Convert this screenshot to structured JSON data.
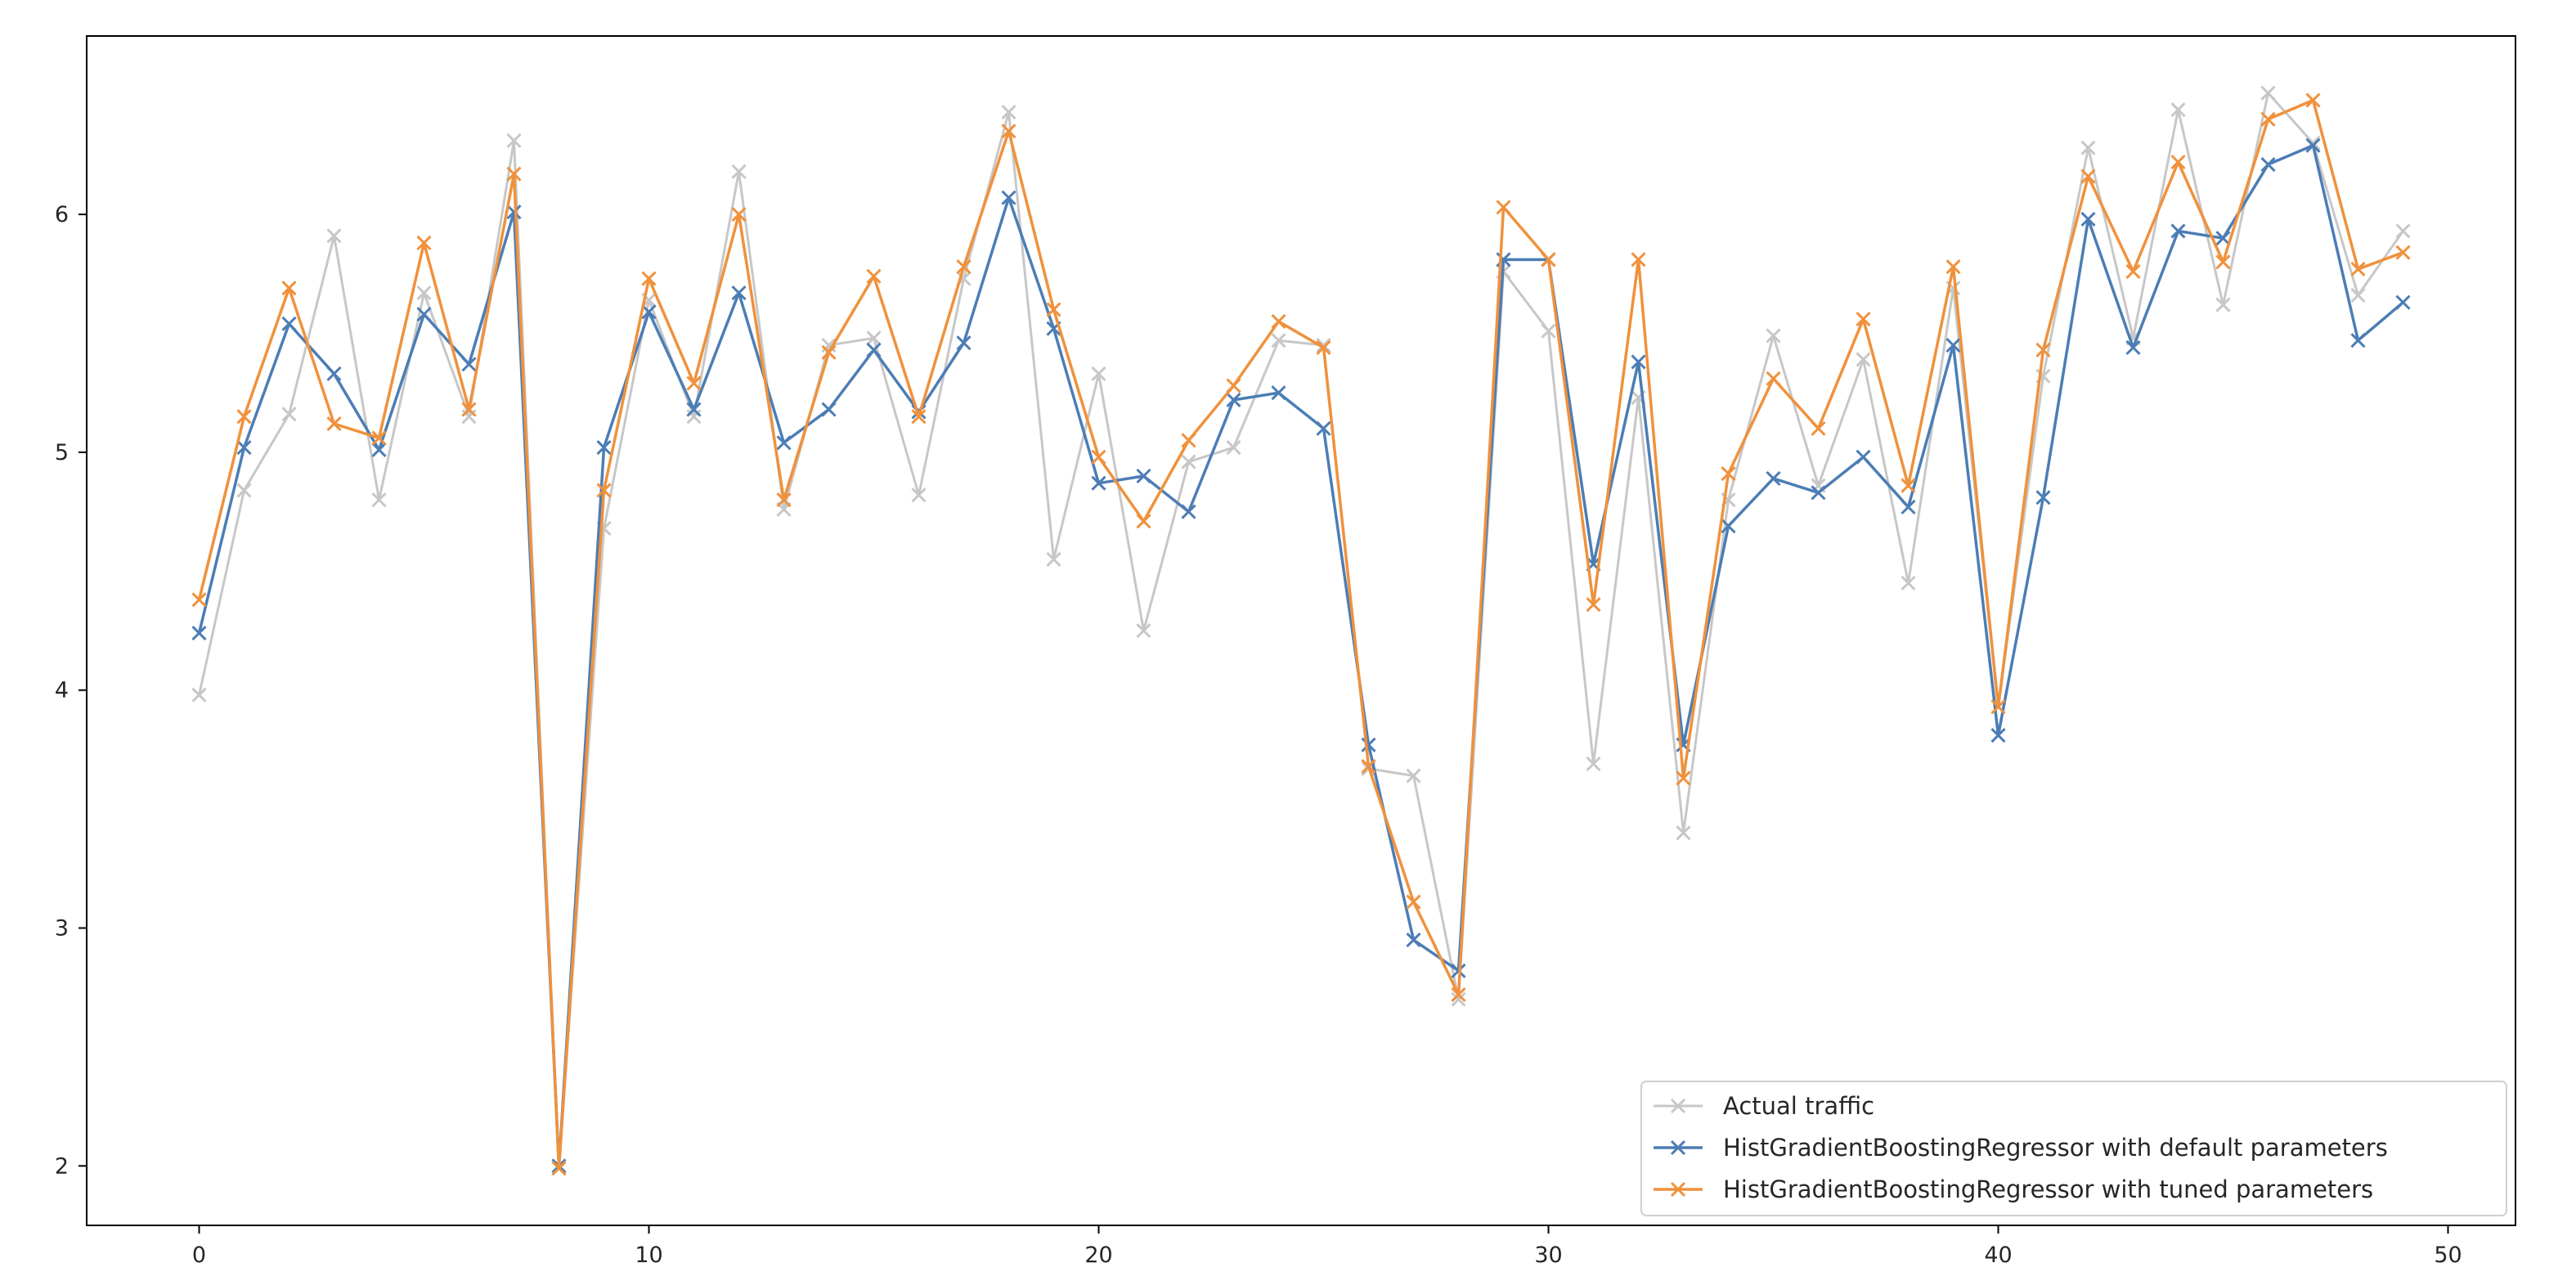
{
  "chart_data": {
    "type": "line",
    "title": "",
    "xlabel": "",
    "ylabel": "",
    "xlim": [
      -2.5,
      51.5
    ],
    "ylim": [
      1.75,
      6.75
    ],
    "xticks": [
      0,
      10,
      20,
      30,
      40,
      50
    ],
    "yticks": [
      2,
      3,
      4,
      5,
      6
    ],
    "grid": false,
    "legend_position": "lower-right",
    "marker": "x",
    "x": [
      0,
      1,
      2,
      3,
      4,
      5,
      6,
      7,
      8,
      9,
      10,
      11,
      12,
      13,
      14,
      15,
      16,
      17,
      18,
      19,
      20,
      21,
      22,
      23,
      24,
      25,
      26,
      27,
      28,
      29,
      30,
      31,
      32,
      33,
      34,
      35,
      36,
      37,
      38,
      39,
      40,
      41,
      42,
      43,
      44,
      45,
      46,
      47,
      48,
      49
    ],
    "series": [
      {
        "name": "Actual traffic",
        "color": "#c7c7c7",
        "values": [
          3.98,
          4.84,
          5.16,
          5.91,
          4.8,
          5.67,
          5.15,
          6.31,
          1.99,
          4.68,
          5.64,
          5.15,
          6.18,
          4.76,
          5.45,
          5.48,
          4.82,
          5.73,
          6.43,
          4.55,
          5.33,
          4.25,
          4.96,
          5.02,
          5.47,
          5.45,
          3.67,
          3.64,
          2.7,
          5.76,
          5.51,
          3.69,
          5.23,
          3.4,
          4.8,
          5.49,
          4.86,
          5.39,
          4.45,
          5.69,
          3.93,
          5.32,
          6.28,
          5.48,
          6.44,
          5.62,
          6.51,
          6.3,
          5.66,
          5.93
        ]
      },
      {
        "name": "HistGradientBoostingRegressor with default parameters",
        "color": "#4c7db5",
        "values": [
          4.24,
          5.02,
          5.54,
          5.33,
          5.01,
          5.58,
          5.37,
          6.01,
          2.0,
          5.02,
          5.59,
          5.18,
          5.67,
          5.04,
          5.18,
          5.43,
          5.17,
          5.46,
          6.07,
          5.52,
          4.87,
          4.9,
          4.75,
          5.22,
          5.25,
          5.1,
          3.77,
          2.95,
          2.82,
          5.81,
          5.81,
          4.53,
          5.38,
          3.77,
          4.69,
          4.89,
          4.83,
          4.98,
          4.77,
          5.45,
          3.81,
          4.81,
          5.98,
          5.44,
          5.93,
          5.9,
          6.21,
          6.29,
          5.47,
          5.63
        ]
      },
      {
        "name": "HistGradientBoostingRegressor with tuned parameters",
        "color": "#f0913c",
        "values": [
          4.38,
          5.15,
          5.69,
          5.12,
          5.06,
          5.88,
          5.18,
          6.17,
          1.99,
          4.84,
          5.73,
          5.29,
          6.0,
          4.8,
          5.42,
          5.74,
          5.15,
          5.78,
          6.35,
          5.6,
          4.98,
          4.71,
          5.05,
          5.28,
          5.55,
          5.44,
          3.68,
          3.11,
          2.72,
          6.03,
          5.81,
          4.36,
          5.81,
          3.63,
          4.91,
          5.31,
          5.1,
          5.56,
          4.86,
          5.78,
          3.93,
          5.43,
          6.16,
          5.76,
          6.22,
          5.8,
          6.4,
          6.48,
          5.77,
          5.84
        ]
      }
    ]
  }
}
